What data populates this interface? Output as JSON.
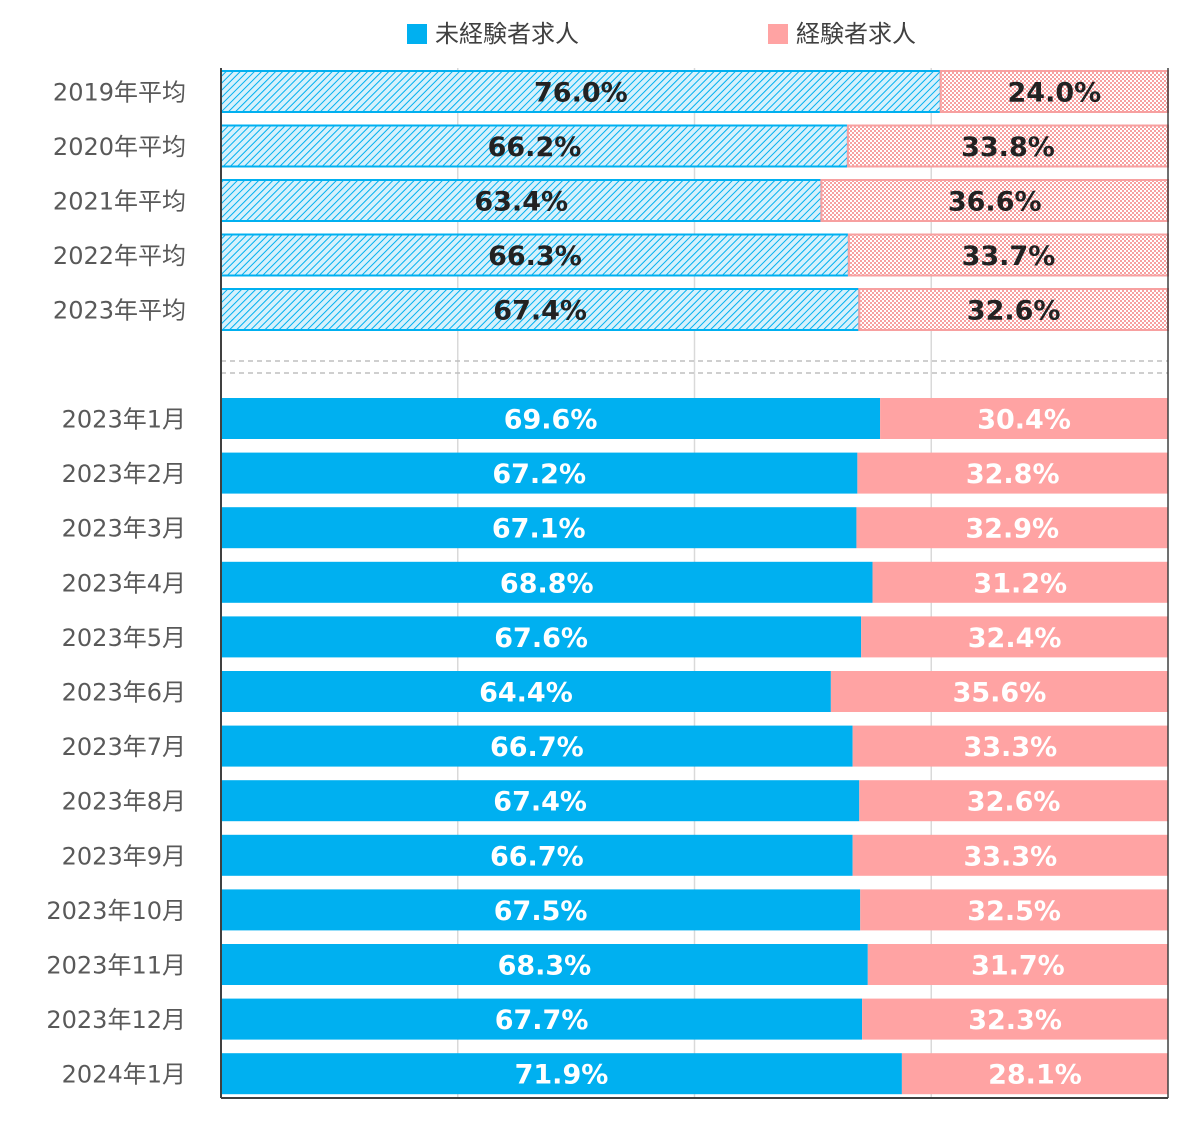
{
  "chart_data": {
    "type": "bar",
    "orientation": "horizontal",
    "stacked": "percent",
    "title": "",
    "xlabel": "",
    "ylabel": "",
    "xlim": [
      0,
      100
    ],
    "grid": true,
    "legend": "top",
    "categories": [
      "2019年平均",
      "2020年平均",
      "2021年平均",
      "2022年平均",
      "2023年平均",
      "2023年1月",
      "2023年2月",
      "2023年3月",
      "2023年4月",
      "2023年5月",
      "2023年6月",
      "2023年7月",
      "2023年8月",
      "2023年9月",
      "2023年10月",
      "2023年11月",
      "2023年12月",
      "2024年1月"
    ],
    "series": [
      {
        "name": "未経験者求人",
        "color": "#00B0F0",
        "values": [
          76.0,
          66.2,
          63.4,
          66.3,
          67.4,
          69.6,
          67.2,
          67.1,
          68.8,
          67.6,
          64.4,
          66.7,
          67.4,
          66.7,
          67.5,
          68.3,
          67.7,
          71.9
        ],
        "labels": [
          "76.0%",
          "66.2%",
          "63.4%",
          "66.3%",
          "67.4%",
          "69.6%",
          "67.2%",
          "67.1%",
          "68.8%",
          "67.6%",
          "64.4%",
          "66.7%",
          "67.4%",
          "66.7%",
          "67.5%",
          "68.3%",
          "67.7%",
          "71.9%"
        ]
      },
      {
        "name": "経験者求人",
        "color": "#FFA3A3",
        "values": [
          24.0,
          33.8,
          36.6,
          33.7,
          32.6,
          30.4,
          32.8,
          32.9,
          31.2,
          32.4,
          35.6,
          33.3,
          32.6,
          33.3,
          32.5,
          31.7,
          32.3,
          28.1
        ],
        "labels": [
          "24.0%",
          "33.8%",
          "36.6%",
          "33.7%",
          "32.6%",
          "30.4%",
          "32.8%",
          "32.9%",
          "31.2%",
          "32.4%",
          "35.6%",
          "33.3%",
          "32.6%",
          "33.3%",
          "32.5%",
          "31.7%",
          "32.3%",
          "28.1%"
        ]
      }
    ],
    "annual_average_count": 5,
    "annual_average_style": "hatched"
  }
}
